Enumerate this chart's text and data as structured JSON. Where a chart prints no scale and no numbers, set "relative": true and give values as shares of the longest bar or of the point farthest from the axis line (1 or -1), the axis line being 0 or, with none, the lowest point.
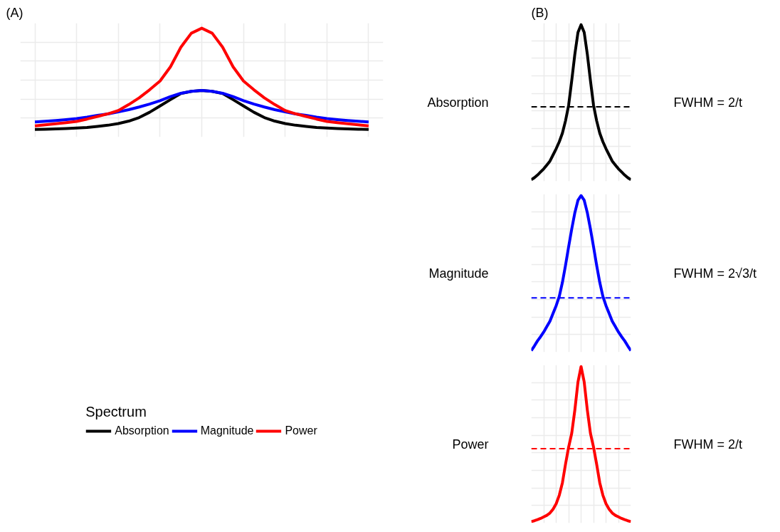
{
  "chart_data": [
    {
      "type": "line",
      "title": "(A)",
      "relative": true,
      "categories": [
        null,
        null,
        null,
        null,
        null,
        null,
        null,
        null,
        null,
        null,
        null,
        null,
        null,
        null,
        null,
        null,
        null,
        null,
        null,
        null,
        null,
        null,
        null,
        null,
        null,
        null,
        null,
        null,
        null,
        null,
        null,
        null,
        null
      ],
      "series": [
        {
          "name": "Absorption",
          "color": "#000000",
          "values": [
            0,
            0.003,
            0.006,
            0.009,
            0.014,
            0.02,
            0.031,
            0.042,
            0.059,
            0.083,
            0.118,
            0.17,
            0.233,
            0.295,
            0.355,
            0.377,
            0.385,
            0.377,
            0.355,
            0.295,
            0.233,
            0.17,
            0.118,
            0.083,
            0.059,
            0.042,
            0.031,
            0.02,
            0.014,
            0.009,
            0.006,
            0.003,
            0
          ]
        },
        {
          "name": "Magnitude",
          "color": "#0000ff",
          "values": [
            0.075,
            0.081,
            0.089,
            0.098,
            0.108,
            0.122,
            0.139,
            0.153,
            0.174,
            0.196,
            0.222,
            0.251,
            0.285,
            0.325,
            0.358,
            0.377,
            0.385,
            0.377,
            0.358,
            0.325,
            0.285,
            0.251,
            0.222,
            0.196,
            0.174,
            0.153,
            0.139,
            0.122,
            0.108,
            0.098,
            0.089,
            0.081,
            0.075
          ]
        },
        {
          "name": "Power",
          "color": "#ff0000",
          "values": [
            0.036,
            0.046,
            0.057,
            0.068,
            0.08,
            0.103,
            0.129,
            0.155,
            0.187,
            0.246,
            0.313,
            0.392,
            0.479,
            0.619,
            0.813,
            0.951,
            1,
            0.951,
            0.813,
            0.619,
            0.479,
            0.392,
            0.313,
            0.246,
            0.187,
            0.155,
            0.129,
            0.103,
            0.08,
            0.068,
            0.057,
            0.046,
            0.036
          ]
        }
      ],
      "legend": "bottom",
      "legend_title": "Spectrum",
      "grid": true,
      "line_style": "solid"
    },
    {
      "type": "line",
      "title": "(B)",
      "relative": true,
      "categories": [
        null,
        null,
        null,
        null,
        null,
        null,
        null,
        null,
        null,
        null,
        null,
        null,
        null,
        null,
        null,
        null,
        null,
        null,
        null,
        null,
        null,
        null,
        null,
        null,
        null,
        null,
        null,
        null,
        null,
        null,
        null,
        null,
        null
      ],
      "series": [
        {
          "name": "Absorption",
          "color": "#000000",
          "values": [
            0,
            0.013,
            0.03,
            0.05,
            0.07,
            0.095,
            0.12,
            0.16,
            0.2,
            0.245,
            0.3,
            0.38,
            0.48,
            0.64,
            0.81,
            0.95,
            1,
            0.95,
            0.81,
            0.64,
            0.48,
            0.38,
            0.3,
            0.245,
            0.2,
            0.16,
            0.12,
            0.095,
            0.07,
            0.05,
            0.03,
            0.013,
            0
          ]
        }
      ],
      "ref_lines": [
        {
          "axis": "y",
          "value": 0.47,
          "color": "#000000",
          "line_style": "dashed"
        }
      ],
      "annotations": [
        "FWHM = 2/t"
      ],
      "grid": true
    },
    {
      "type": "line",
      "relative": true,
      "categories": [
        null,
        null,
        null,
        null,
        null,
        null,
        null,
        null,
        null,
        null,
        null,
        null,
        null,
        null,
        null,
        null,
        null,
        null,
        null,
        null,
        null,
        null,
        null,
        null,
        null,
        null,
        null,
        null,
        null,
        null,
        null,
        null,
        null
      ],
      "series": [
        {
          "name": "Magnitude",
          "color": "#0000ff",
          "values": [
            0,
            0.03,
            0.063,
            0.09,
            0.12,
            0.155,
            0.19,
            0.24,
            0.29,
            0.35,
            0.44,
            0.55,
            0.67,
            0.785,
            0.89,
            0.97,
            1,
            0.97,
            0.89,
            0.785,
            0.67,
            0.55,
            0.44,
            0.35,
            0.29,
            0.24,
            0.19,
            0.155,
            0.12,
            0.09,
            0.063,
            0.03,
            0
          ]
        }
      ],
      "ref_lines": [
        {
          "axis": "y",
          "value": 0.34,
          "color": "#0000ff",
          "line_style": "dashed"
        }
      ],
      "annotations": [
        "FWHM = 2√3/t"
      ],
      "grid": true
    },
    {
      "type": "line",
      "relative": true,
      "categories": [
        null,
        null,
        null,
        null,
        null,
        null,
        null,
        null,
        null,
        null,
        null,
        null,
        null,
        null,
        null,
        null,
        null,
        null,
        null,
        null,
        null,
        null,
        null,
        null,
        null,
        null,
        null,
        null,
        null,
        null,
        null,
        null,
        null
      ],
      "series": [
        {
          "name": "Power",
          "color": "#ff0000",
          "values": [
            0,
            0.005,
            0.012,
            0.02,
            0.03,
            0.04,
            0.055,
            0.08,
            0.115,
            0.17,
            0.25,
            0.37,
            0.48,
            0.57,
            0.72,
            0.9,
            1,
            0.9,
            0.72,
            0.57,
            0.48,
            0.37,
            0.25,
            0.17,
            0.115,
            0.08,
            0.055,
            0.04,
            0.03,
            0.02,
            0.012,
            0.005,
            0
          ]
        }
      ],
      "ref_lines": [
        {
          "axis": "y",
          "value": 0.47,
          "color": "#ff0000",
          "line_style": "dashed"
        }
      ],
      "annotations": [
        "FWHM = 2/t"
      ],
      "grid": true
    }
  ]
}
